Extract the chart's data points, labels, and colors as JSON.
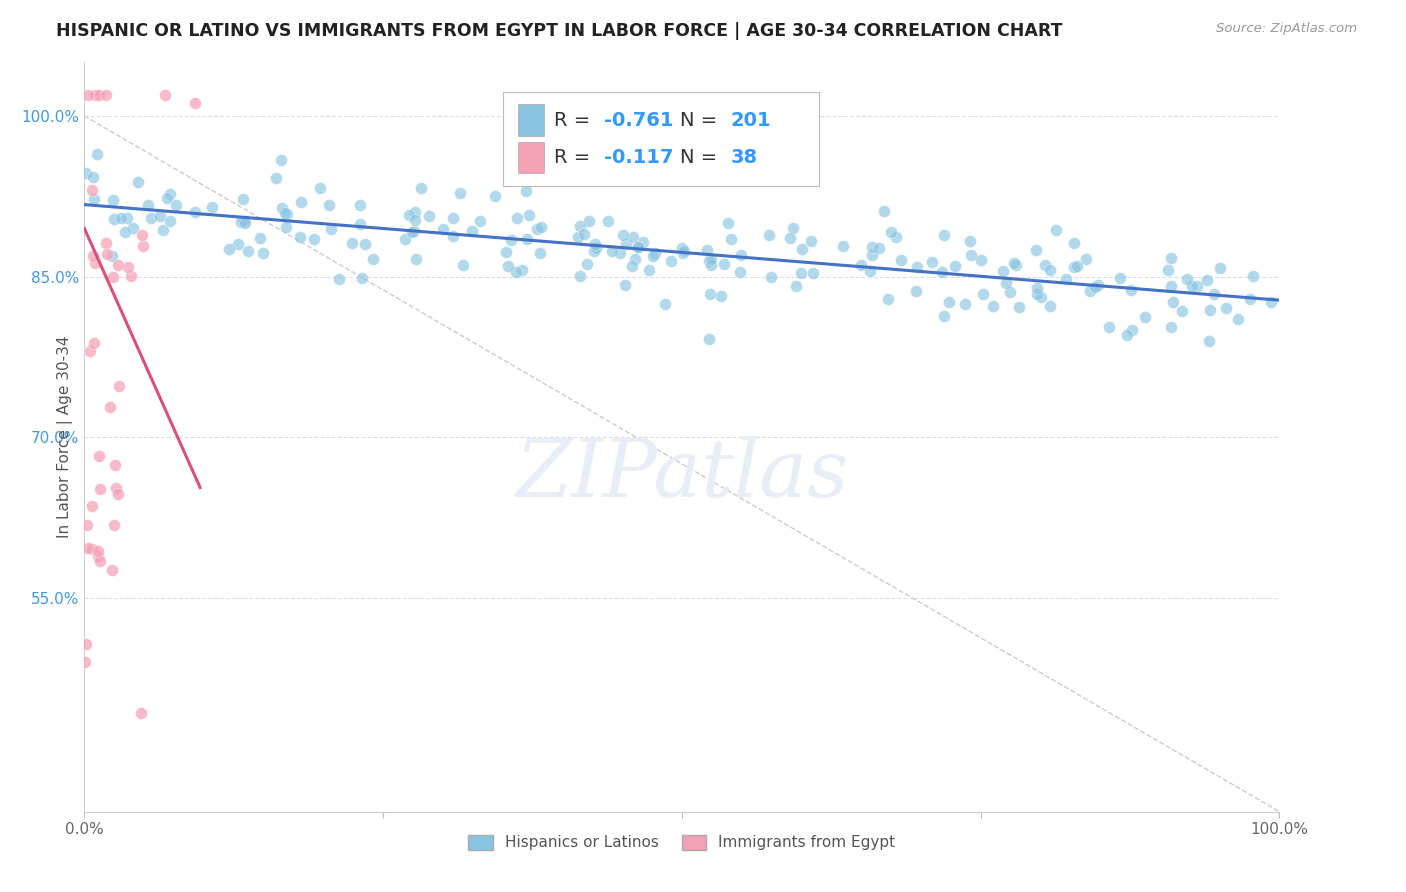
{
  "title": "HISPANIC OR LATINO VS IMMIGRANTS FROM EGYPT IN LABOR FORCE | AGE 30-34 CORRELATION CHART",
  "source": "Source: ZipAtlas.com",
  "ylabel": "In Labor Force | Age 30-34",
  "xlim": [
    0.0,
    1.0
  ],
  "ylim": [
    0.35,
    1.05
  ],
  "yticks": [
    0.55,
    0.7,
    0.85,
    1.0
  ],
  "ytick_labels": [
    "55.0%",
    "70.0%",
    "85.0%",
    "100.0%"
  ],
  "blue_R": -0.761,
  "blue_N": 201,
  "pink_R": -0.117,
  "pink_N": 38,
  "blue_color": "#89c4e1",
  "pink_color": "#f4a0b5",
  "blue_trend_color": "#4472c4",
  "pink_trend_color": "#d9507a",
  "blue_label": "Hispanics or Latinos",
  "pink_label": "Immigrants from Egypt",
  "legend_color": "#3399ff",
  "watermark_color": "#e8eef5",
  "background_color": "#ffffff",
  "grid_color": "#dddddd",
  "title_fontsize": 12.5,
  "legend_fontsize": 14,
  "tick_fontsize": 11
}
